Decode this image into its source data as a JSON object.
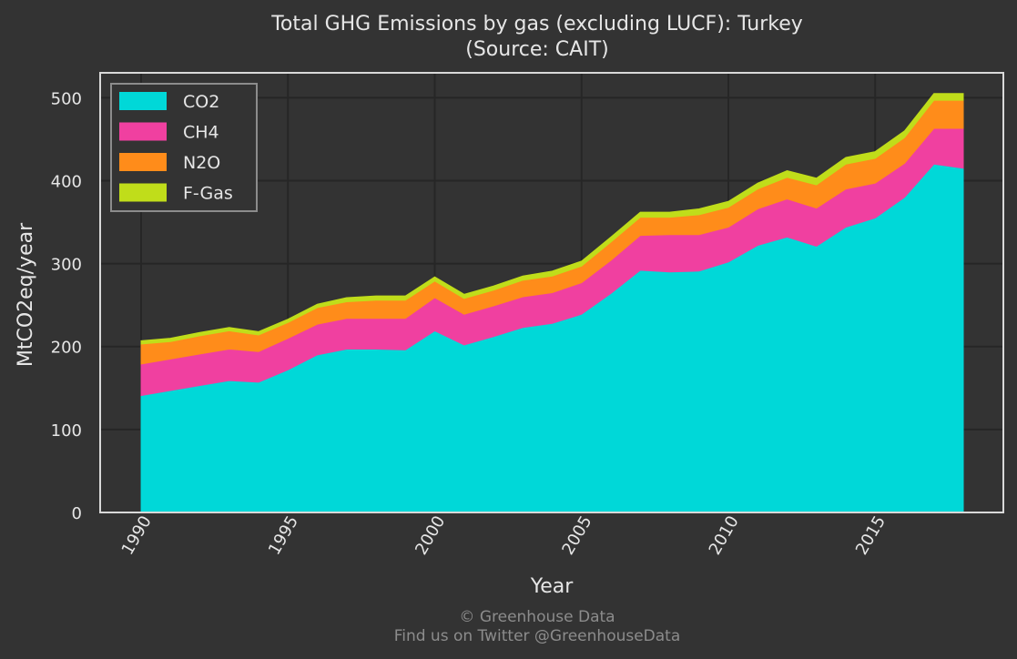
{
  "chart_data": {
    "type": "area",
    "stacked": true,
    "title": "Total GHG Emissions by gas (excluding LUCF): Turkey",
    "subtitle": "(Source: CAIT)",
    "xlabel": "Year",
    "ylabel": "MtCO2eq/year",
    "xlim": [
      1990,
      2018
    ],
    "ylim": [
      0,
      530
    ],
    "x_ticks": [
      1990,
      1995,
      2000,
      2005,
      2010,
      2015
    ],
    "y_ticks": [
      0,
      100,
      200,
      300,
      400,
      500
    ],
    "grid": true,
    "legend_position": "top-left",
    "x": [
      1990,
      1991,
      1992,
      1993,
      1994,
      1995,
      1996,
      1997,
      1998,
      1999,
      2000,
      2001,
      2002,
      2003,
      2004,
      2005,
      2006,
      2007,
      2008,
      2009,
      2010,
      2011,
      2012,
      2013,
      2014,
      2015,
      2016,
      2017,
      2018
    ],
    "series": [
      {
        "name": "CO2",
        "color": "#00d8d8",
        "values": [
          141,
          147,
          153,
          159,
          157,
          172,
          190,
          197,
          197,
          196,
          219,
          202,
          212,
          223,
          228,
          239,
          264,
          292,
          290,
          291,
          302,
          322,
          332,
          321,
          344,
          355,
          380,
          420,
          415
        ]
      },
      {
        "name": "CH4",
        "color": "#f040a0",
        "values": [
          38,
          38,
          38,
          38,
          37,
          38,
          37,
          37,
          37,
          38,
          40,
          37,
          37,
          37,
          37,
          38,
          40,
          42,
          45,
          44,
          42,
          44,
          46,
          46,
          46,
          42,
          41,
          43,
          48
        ]
      },
      {
        "name": "N2O",
        "color": "#ff8c1a",
        "values": [
          24,
          21,
          22,
          22,
          20,
          19,
          20,
          20,
          22,
          22,
          20,
          19,
          19,
          20,
          20,
          20,
          22,
          22,
          21,
          24,
          24,
          24,
          26,
          28,
          30,
          30,
          31,
          34,
          34
        ]
      },
      {
        "name": "F-Gas",
        "color": "#c0dd1a",
        "values": [
          4,
          4,
          4,
          4,
          4,
          4,
          4,
          5,
          5,
          5,
          5,
          5,
          5,
          5,
          6,
          6,
          6,
          6,
          6,
          7,
          7,
          7,
          8,
          8,
          8,
          8,
          8,
          8,
          8
        ]
      }
    ]
  },
  "footer": {
    "copyright": "© Greenhouse Data",
    "twitter": "Find us on Twitter @GreenhouseData"
  }
}
